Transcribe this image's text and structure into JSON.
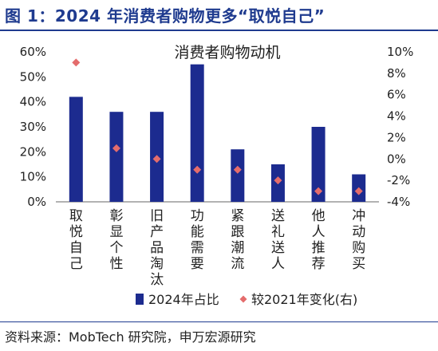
{
  "header": {
    "title": "图 1：2024 年消费者购物更多“取悦自己”"
  },
  "footer": {
    "source": "资料来源：MobTech 研究院，申万宏源研究"
  },
  "colors": {
    "bar": "#1c2b8f",
    "marker": "#e46c6c",
    "title": "#1f3b8f"
  },
  "chart_data": {
    "type": "bar",
    "title": "消费者购物动机",
    "categories": [
      "取悦自己",
      "彰显个性",
      "旧产品淘汰",
      "功能需要",
      "紧跟潮流",
      "送礼送人",
      "他人推荐",
      "冲动购买"
    ],
    "series": [
      {
        "name": "2024年占比",
        "type": "bar",
        "axis": "left",
        "values": [
          42,
          36,
          36,
          55,
          21,
          15,
          30,
          11
        ],
        "unit": "%"
      },
      {
        "name": "较2021年变化(右)",
        "type": "scatter",
        "marker": "diamond",
        "axis": "right",
        "values": [
          9,
          1,
          0,
          -1,
          -1,
          -2,
          -3,
          -3
        ],
        "unit": "%"
      }
    ],
    "y_left": {
      "ylim": [
        0,
        60
      ],
      "ticks": [
        "0%",
        "10%",
        "20%",
        "30%",
        "40%",
        "50%",
        "60%"
      ]
    },
    "y_right": {
      "ylim": [
        -4,
        10
      ],
      "ticks": [
        "-4%",
        "-2%",
        "0%",
        "2%",
        "4%",
        "6%",
        "8%",
        "10%"
      ]
    },
    "grid": false,
    "legend_position": "bottom"
  }
}
